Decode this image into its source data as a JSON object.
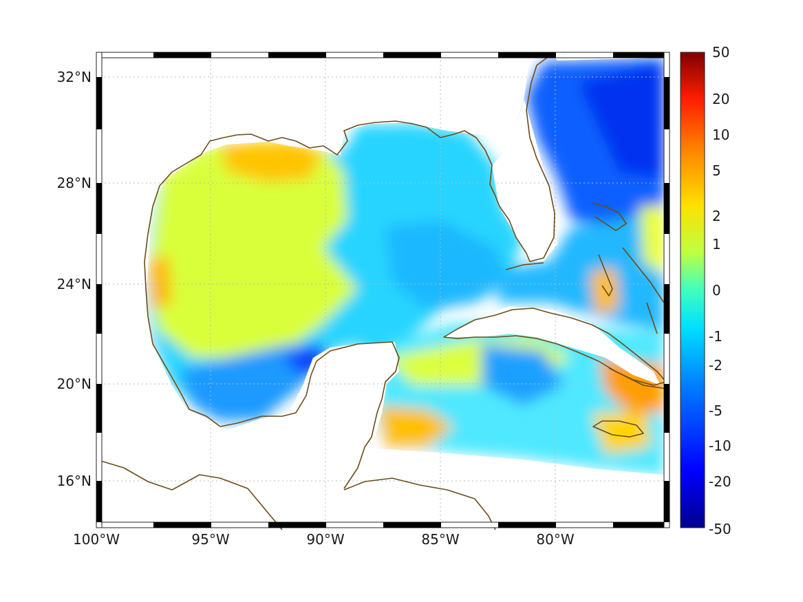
{
  "map": {
    "lon_ticks": [
      "100°W",
      "95°W",
      "90°W",
      "85°W",
      "80°W"
    ],
    "lat_ticks": [
      "32°N",
      "28°N",
      "24°N",
      "20°N",
      "16°N"
    ],
    "extent": {
      "lon": [
        -100,
        -75
      ],
      "lat": [
        14.5,
        33
      ]
    },
    "coastline_color": "#6b4a1a",
    "grid": "dotted"
  },
  "colorbar": {
    "tick_labels": [
      "50",
      "20",
      "10",
      "5",
      "2",
      "1",
      "0",
      "-1",
      "-2",
      "-5",
      "-10",
      "-20",
      "-50"
    ],
    "colormap": "jet",
    "range": [
      -50,
      50
    ]
  }
}
